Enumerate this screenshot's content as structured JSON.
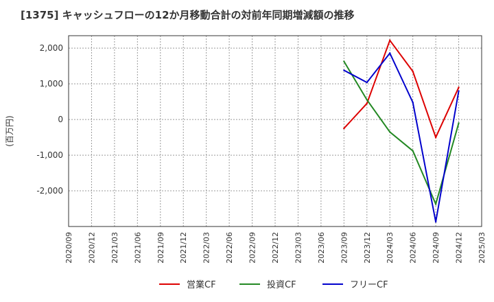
{
  "chart_data": {
    "type": "line",
    "title": "[1375]  キャッシュフローの12か月移動合計の対前年同期増減額の推移",
    "ylabel": "(百万円)",
    "xlabel": "",
    "ylim": [
      -3000,
      2350
    ],
    "yticks": [
      2000,
      1000,
      0,
      -1000,
      -2000
    ],
    "ytick_labels": [
      "2,000",
      "1,000",
      "0",
      "-1,000",
      "-2,000"
    ],
    "x_ticks": [
      "2020/09",
      "2020/12",
      "2021/03",
      "2021/06",
      "2021/09",
      "2021/12",
      "2022/03",
      "2022/06",
      "2022/09",
      "2022/12",
      "2023/03",
      "2023/06",
      "2023/09",
      "2023/12",
      "2024/03",
      "2024/06",
      "2024/09",
      "2024/12",
      "2025/03"
    ],
    "grid": true,
    "legend_position": "bottom",
    "series": [
      {
        "name": "営業CF",
        "color": "#dd0000",
        "x": [
          "2023/09",
          "2023/12",
          "2024/03",
          "2024/06",
          "2024/09",
          "2024/12"
        ],
        "values": [
          -250,
          450,
          2220,
          1350,
          -500,
          900
        ]
      },
      {
        "name": "投資CF",
        "color": "#228822",
        "x": [
          "2023/09",
          "2023/12",
          "2024/03",
          "2024/06",
          "2024/09",
          "2024/12"
        ],
        "values": [
          1630,
          550,
          -350,
          -880,
          -2370,
          -100
        ]
      },
      {
        "name": "フリーCF",
        "color": "#0000cc",
        "x": [
          "2023/09",
          "2023/12",
          "2024/03",
          "2024/06",
          "2024/09",
          "2024/12"
        ],
        "values": [
          1380,
          1040,
          1860,
          480,
          -2870,
          800
        ]
      }
    ]
  }
}
